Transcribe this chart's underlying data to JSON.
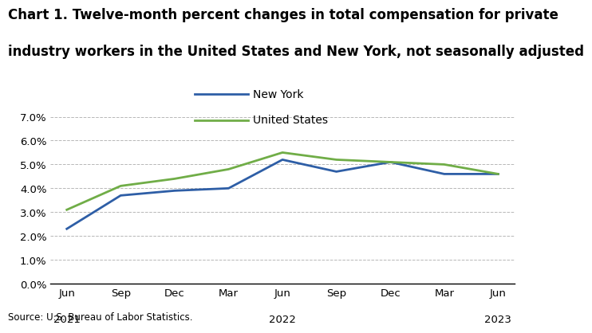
{
  "title_line1": "Chart 1. Twelve-month percent changes in total compensation for private",
  "title_line2": "industry workers in the United States and New York, not seasonally adjusted",
  "source": "Source: U.S. Bureau of Labor Statistics.",
  "x_tick_labels": [
    "Jun",
    "Sep",
    "Dec",
    "Mar",
    "Jun",
    "Sep",
    "Dec",
    "Mar",
    "Jun"
  ],
  "x_year_labels": [
    "2021",
    "",
    "",
    "",
    "2022",
    "",
    "",
    "",
    "2023"
  ],
  "new_york": [
    2.3,
    3.7,
    3.9,
    4.0,
    5.2,
    4.7,
    5.1,
    4.6,
    4.6
  ],
  "united_states": [
    3.1,
    4.1,
    4.4,
    4.8,
    5.5,
    5.2,
    5.1,
    5.0,
    4.6
  ],
  "ny_color": "#2e5ea6",
  "us_color": "#70ad47",
  "ny_label": "New York",
  "us_label": "United States",
  "ylim": [
    0.0,
    7.0
  ],
  "yticks": [
    0.0,
    1.0,
    2.0,
    3.0,
    4.0,
    5.0,
    6.0,
    7.0
  ],
  "ytick_labels": [
    "0.0%",
    "1.0%",
    "2.0%",
    "3.0%",
    "4.0%",
    "5.0%",
    "6.0%",
    "7.0%"
  ],
  "line_width": 2.0,
  "background_color": "#ffffff",
  "grid_color": "#b0b0b0",
  "title_fontsize": 12,
  "legend_fontsize": 10,
  "tick_fontsize": 9.5,
  "source_fontsize": 8.5
}
